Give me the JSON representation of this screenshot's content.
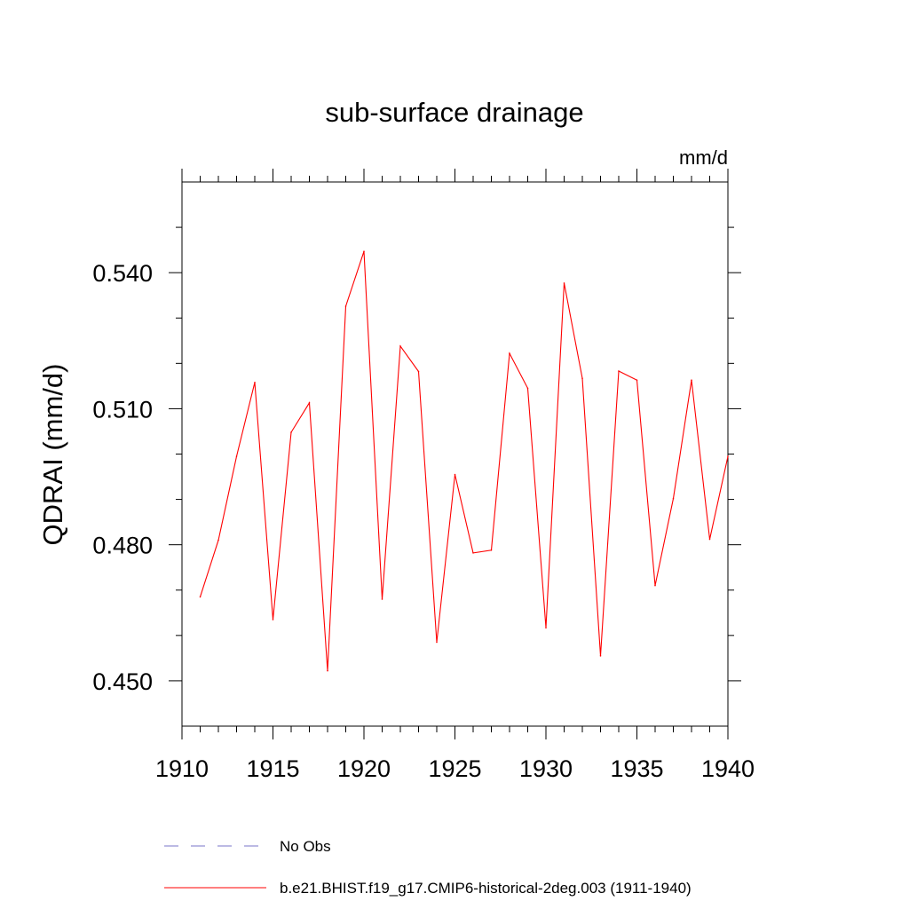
{
  "chart_data": {
    "type": "line",
    "title": "sub-surface drainage",
    "units_label": "mm/d",
    "ylabel": "QDRAI  (mm/d)",
    "xlabel": "",
    "xlim": [
      1910,
      1940
    ],
    "ylim": [
      0.44,
      0.56
    ],
    "x_ticks": [
      "1910",
      "1915",
      "1920",
      "1925",
      "1930",
      "1935",
      "1940"
    ],
    "x_tick_values": [
      1910,
      1915,
      1920,
      1925,
      1930,
      1935,
      1940
    ],
    "x_minor_step": 1,
    "y_ticks": [
      "0.450",
      "0.480",
      "0.510",
      "0.540"
    ],
    "y_tick_values": [
      0.45,
      0.48,
      0.51,
      0.54
    ],
    "y_minor_step": 0.01,
    "grid": false,
    "legend_position": "bottom",
    "legend": [
      {
        "label": "No Obs",
        "color": "#7a74c8",
        "style": "dashed"
      },
      {
        "label": "b.e21.BHIST.f19_g17.CMIP6-historical-2deg.003 (1911-1940)",
        "color": "#ff0000",
        "style": "solid"
      }
    ],
    "series": [
      {
        "name": "b.e21.BHIST.f19_g17.CMIP6-historical-2deg.003 (1911-1940)",
        "color": "#ff0000",
        "x": [
          1911,
          1912,
          1913,
          1914,
          1915,
          1916,
          1917,
          1918,
          1919,
          1920,
          1921,
          1922,
          1923,
          1924,
          1925,
          1926,
          1927,
          1928,
          1929,
          1930,
          1931,
          1932,
          1933,
          1934,
          1935,
          1936,
          1937,
          1938,
          1939,
          1940
        ],
        "values": [
          0.4685,
          0.481,
          0.4995,
          0.5158,
          0.4635,
          0.5048,
          0.5113,
          0.4522,
          0.5326,
          0.5447,
          0.468,
          0.5238,
          0.5182,
          0.4585,
          0.4955,
          0.4782,
          0.4788,
          0.5222,
          0.5145,
          0.4617,
          0.5377,
          0.5167,
          0.4555,
          0.5183,
          0.5163,
          0.471,
          0.4902,
          0.5163,
          0.4812,
          0.4995
        ]
      }
    ]
  }
}
